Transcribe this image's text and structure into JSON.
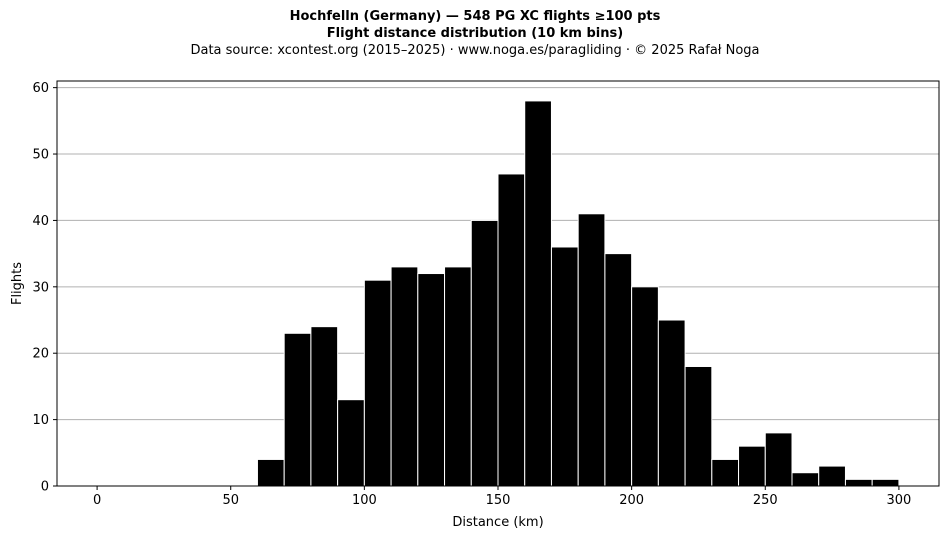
{
  "chart_data": {
    "type": "bar",
    "title": "Hochfelln (Germany)  —  548 PG XC flights ≥100 pts",
    "subtitle": "Flight distance distribution (10 km bins)",
    "source": "Data source: xcontest.org (2015–2025)  ·  www.noga.es/paragliding  ·  © 2025 Rafał Noga",
    "xlabel": "Distance (km)",
    "ylabel": "Flights",
    "xlim": [
      -15,
      315
    ],
    "ylim": [
      0,
      61
    ],
    "xticks": [
      0,
      50,
      100,
      150,
      200,
      250,
      300
    ],
    "yticks": [
      0,
      10,
      20,
      30,
      40,
      50,
      60
    ],
    "bin_width": 10,
    "grid": "horizontal",
    "bar_color": "#000000",
    "edge_color": "#ffffff",
    "grid_color": "#b0b0b0",
    "bins": [
      {
        "x0": 60,
        "count": 4
      },
      {
        "x0": 70,
        "count": 23
      },
      {
        "x0": 80,
        "count": 24
      },
      {
        "x0": 90,
        "count": 13
      },
      {
        "x0": 100,
        "count": 31
      },
      {
        "x0": 110,
        "count": 33
      },
      {
        "x0": 120,
        "count": 32
      },
      {
        "x0": 130,
        "count": 33
      },
      {
        "x0": 140,
        "count": 40
      },
      {
        "x0": 150,
        "count": 47
      },
      {
        "x0": 160,
        "count": 58
      },
      {
        "x0": 170,
        "count": 36
      },
      {
        "x0": 180,
        "count": 41
      },
      {
        "x0": 190,
        "count": 35
      },
      {
        "x0": 200,
        "count": 30
      },
      {
        "x0": 210,
        "count": 25
      },
      {
        "x0": 220,
        "count": 18
      },
      {
        "x0": 230,
        "count": 4
      },
      {
        "x0": 240,
        "count": 6
      },
      {
        "x0": 250,
        "count": 8
      },
      {
        "x0": 260,
        "count": 2
      },
      {
        "x0": 270,
        "count": 3
      },
      {
        "x0": 280,
        "count": 1
      },
      {
        "x0": 290,
        "count": 1
      }
    ]
  }
}
